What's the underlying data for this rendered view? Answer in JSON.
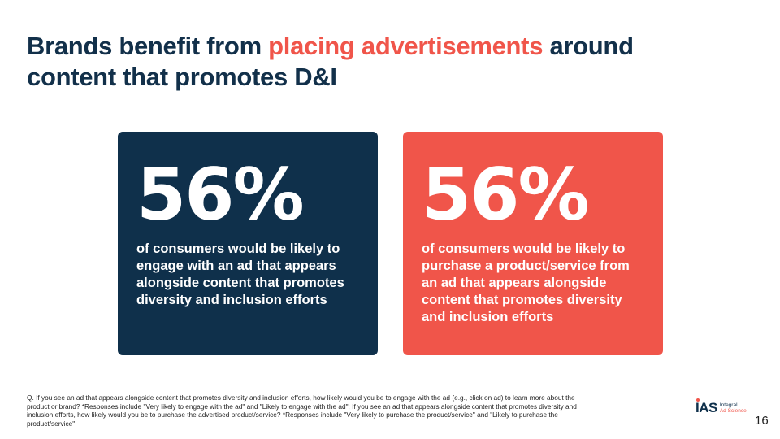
{
  "title": {
    "part1": "Brands benefit from ",
    "accent": "placing advertisements",
    "part2": " around content that promotes D&I"
  },
  "cards": [
    {
      "stat": "56%",
      "desc_before": "of consumers would be likely to ",
      "desc_bold": "engage",
      "desc_after": " with an ad that appears alongside content that promotes diversity and inclusion efforts"
    },
    {
      "stat": "56%",
      "desc_before": "of consumers would be likely to ",
      "desc_bold": "purchase",
      "desc_after": " a product/service from an ad that appears alongside content that promotes diversity and inclusion efforts"
    }
  ],
  "footnote": "Q. If you see an ad that appears alongside content that promotes diversity and inclusion efforts, how likely would you be to engage with the ad (e.g., click on ad) to learn more about the product or brand? *Responses include \"Very likely to engage with the ad\" and \"Likely to engage with the ad\"; If you see an ad that appears alongside content that promotes diversity and inclusion efforts, how likely would you be to purchase the advertised product/service? *Responses include \"Very likely to purchase the product/service\" and \"Likely to purchase the product/service\"",
  "logo": {
    "mark": "IAS",
    "line1": "Integral",
    "line2": "Ad Science"
  },
  "page_number": "16",
  "colors": {
    "navy": "#0f304b",
    "coral": "#f0554a"
  }
}
